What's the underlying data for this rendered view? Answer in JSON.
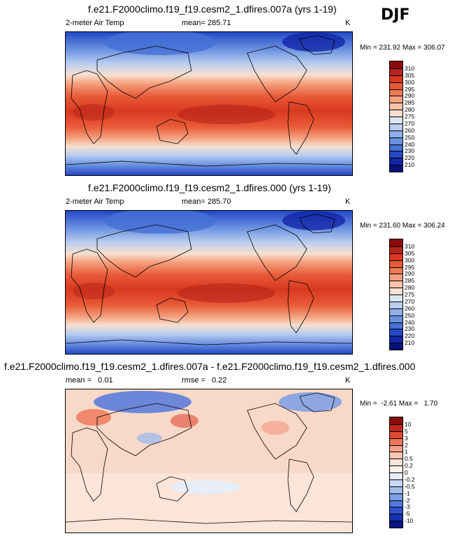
{
  "season": "DJF",
  "panels": [
    {
      "title": "f.e21.F2000climo.f19_f19.cesm2_1.dfires.007a (yrs 1-19)",
      "left_label": "2-meter Air Temp",
      "center_label": "mean= 285.71",
      "units": "K",
      "minmax": "Min = 231.92 Max = 306.07",
      "colorbar_labels": [
        "310",
        "305",
        "300",
        "295",
        "290",
        "285",
        "280",
        "275",
        "270",
        "260",
        "250",
        "240",
        "230",
        "220",
        "210"
      ]
    },
    {
      "title": "f.e21.F2000climo.f19_f19.cesm2_1.dfires.000 (yrs 1-19)",
      "left_label": "2-meter Air Temp",
      "center_label": "mean= 285.70",
      "units": "K",
      "minmax": "Min = 231.60 Max = 306.24",
      "colorbar_labels": [
        "310",
        "305",
        "300",
        "295",
        "290",
        "285",
        "280",
        "275",
        "270",
        "260",
        "250",
        "240",
        "230",
        "220",
        "210"
      ]
    },
    {
      "title": "f.e21.F2000climo.f19_f19.cesm2_1.dfires.007a - f.e21.F2000climo.f19_f19.cesm2_1.dfires.000",
      "left_label": "mean =   0.01",
      "center_label": "rmse =   0.22",
      "units": "K",
      "minmax": "Min =  -2.61 Max =   1.70",
      "colorbar_labels": [
        "10",
        "5",
        "3",
        "2",
        "1",
        "0.5",
        "0.2",
        "0",
        "-0.2",
        "-0.5",
        "-1",
        "-2",
        "-3",
        "-5",
        "-10"
      ]
    }
  ],
  "colors": {
    "abs_scale": [
      "#8b0a0a",
      "#b8231a",
      "#d8391e",
      "#e85a38",
      "#f07a55",
      "#f5a07e",
      "#f8c3a8",
      "#f7e0d0",
      "#dbe6f5",
      "#b9cdf0",
      "#8fb0ea",
      "#6a91e0",
      "#4570d6",
      "#2448c6",
      "#1226a8",
      "#07117a"
    ],
    "diff_scale": [
      "#8b0a0a",
      "#c0281c",
      "#e04a32",
      "#ee7658",
      "#f4a187",
      "#f8c8b4",
      "#fbe4d8",
      "#fff2ea",
      "#e6eefb",
      "#c8d8f5",
      "#a3bdee",
      "#7b9ee6",
      "#5479dc",
      "#2f52cc",
      "#1530b0",
      "#071685"
    ]
  }
}
